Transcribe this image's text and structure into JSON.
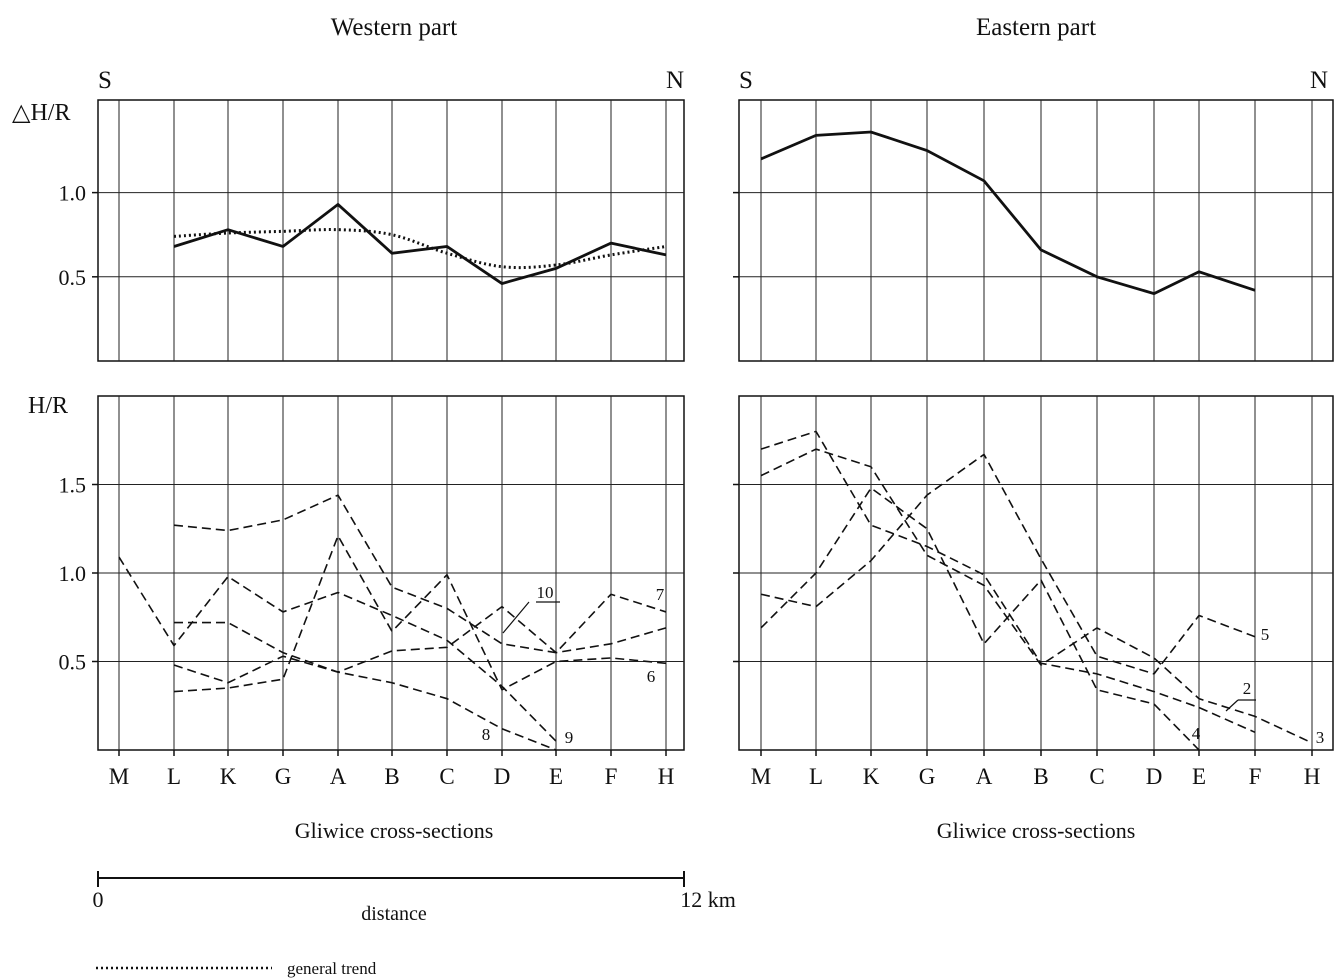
{
  "figure": {
    "western_title": "Western part",
    "eastern_title": "Eastern part",
    "south_label": "S",
    "north_label": "N",
    "delta_ylabel": "△H/R",
    "h_ylabel": "H/R",
    "xlabel": "Gliwice cross-sections",
    "scale_start": "0",
    "scale_end": "12 km",
    "scale_label": "distance",
    "legend_trend": "general trend",
    "colors": {
      "line": "#111111",
      "background": "#ffffff"
    }
  },
  "chart_data": [
    {
      "id": "west_top",
      "type": "line",
      "categories": [
        "M",
        "L",
        "K",
        "G",
        "A",
        "B",
        "C",
        "D",
        "E",
        "F",
        "H"
      ],
      "ylabel": "△H/R",
      "ylim": [
        0,
        1.55
      ],
      "yticks": [
        0.5,
        1.0
      ],
      "series": [
        {
          "style": "solid",
          "x": [
            1,
            2,
            3,
            4,
            5,
            6,
            7,
            8,
            9,
            10
          ],
          "values": [
            0.68,
            0.78,
            0.68,
            0.93,
            0.64,
            0.68,
            0.46,
            0.55,
            0.7,
            0.63
          ]
        },
        {
          "name": "general trend",
          "style": "dotted",
          "curve": true,
          "x": [
            1,
            2,
            3,
            4,
            5,
            6,
            7,
            8,
            9,
            10
          ],
          "values": [
            0.74,
            0.76,
            0.77,
            0.78,
            0.75,
            0.64,
            0.56,
            0.57,
            0.63,
            0.68
          ]
        }
      ]
    },
    {
      "id": "east_top",
      "type": "line",
      "categories": [
        "M",
        "L",
        "K",
        "G",
        "A",
        "B",
        "C",
        "D",
        "E",
        "F",
        "H"
      ],
      "ylim": [
        0,
        1.55
      ],
      "yticks": [
        0.5,
        1.0
      ],
      "series": [
        {
          "style": "solid",
          "x": [
            0,
            1,
            2,
            3,
            4,
            5,
            6,
            7,
            8,
            9
          ],
          "values": [
            1.2,
            1.34,
            1.36,
            1.25,
            1.07,
            0.66,
            0.5,
            0.4,
            0.53,
            0.42
          ]
        }
      ]
    },
    {
      "id": "west_bottom",
      "type": "line",
      "categories": [
        "M",
        "L",
        "K",
        "G",
        "A",
        "B",
        "C",
        "D",
        "E",
        "F",
        "H"
      ],
      "ylabel": "H/R",
      "ylim": [
        0,
        2.0
      ],
      "yticks": [
        0.5,
        1.0,
        1.5
      ],
      "series": [
        {
          "style": "dashed",
          "x": [
            0,
            1,
            2,
            3,
            4,
            5,
            6,
            7,
            8
          ],
          "values": [
            1.09,
            0.59,
            0.98,
            0.78,
            0.89,
            0.76,
            0.62,
            0.36,
            0.05
          ]
        },
        {
          "style": "dashed",
          "x": [
            1,
            2,
            3,
            4,
            5,
            6,
            7,
            8,
            9,
            10
          ],
          "values": [
            1.27,
            1.24,
            1.3,
            1.44,
            0.92,
            0.8,
            0.6,
            0.55,
            0.88,
            0.78
          ]
        },
        {
          "style": "dashed",
          "x": [
            1,
            2,
            3,
            4,
            5,
            6,
            7,
            8,
            9,
            10
          ],
          "values": [
            0.48,
            0.38,
            0.53,
            0.44,
            0.56,
            0.58,
            0.81,
            0.55,
            0.6,
            0.69
          ]
        },
        {
          "style": "dashed",
          "x": [
            1,
            2,
            3,
            4,
            5,
            6,
            7,
            8
          ],
          "values": [
            0.72,
            0.72,
            0.55,
            0.44,
            0.38,
            0.29,
            0.12,
            0.0
          ]
        },
        {
          "style": "dashed",
          "x": [
            1,
            2,
            3,
            4,
            5,
            6,
            7,
            8,
            9,
            10
          ],
          "values": [
            0.33,
            0.35,
            0.4,
            1.21,
            0.67,
            0.99,
            0.34,
            0.5,
            0.52,
            0.49
          ]
        }
      ],
      "annotations": [
        "10",
        "7",
        "6",
        "8",
        "9"
      ]
    },
    {
      "id": "east_bottom",
      "type": "line",
      "categories": [
        "M",
        "L",
        "K",
        "G",
        "A",
        "B",
        "C",
        "D",
        "E",
        "F",
        "H"
      ],
      "ylim": [
        0,
        2.0
      ],
      "yticks": [
        0.5,
        1.0,
        1.5
      ],
      "series": [
        {
          "style": "dashed",
          "x": [
            0,
            1,
            2,
            3,
            4,
            5,
            6,
            7,
            8,
            9
          ],
          "values": [
            1.7,
            1.8,
            1.27,
            1.15,
            0.99,
            0.49,
            0.43,
            0.33,
            0.24,
            0.1
          ]
        },
        {
          "style": "dashed",
          "x": [
            0,
            1,
            2,
            3,
            4,
            5,
            6,
            7,
            8,
            9,
            10
          ],
          "values": [
            1.55,
            1.7,
            1.6,
            1.1,
            0.93,
            0.48,
            0.69,
            0.52,
            0.29,
            0.19,
            0.04
          ]
        },
        {
          "style": "dashed",
          "x": [
            0,
            1,
            2,
            3,
            4,
            5,
            6,
            7,
            8
          ],
          "values": [
            0.69,
            1.0,
            1.48,
            1.25,
            0.6,
            0.96,
            0.34,
            0.26,
            0.0
          ]
        },
        {
          "style": "dashed",
          "x": [
            0,
            1,
            2,
            3,
            4,
            5,
            6,
            7,
            8,
            9
          ],
          "values": [
            0.88,
            0.81,
            1.07,
            1.44,
            1.67,
            1.08,
            0.53,
            0.43,
            0.76,
            0.64
          ]
        }
      ],
      "annotations": [
        "5",
        "2",
        "4",
        "3"
      ]
    }
  ]
}
